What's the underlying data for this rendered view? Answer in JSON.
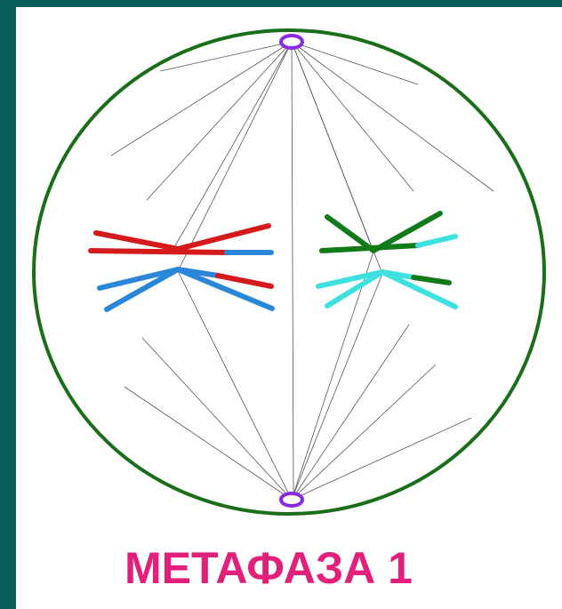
{
  "caption": "МЕТАФАЗА 1"
}
